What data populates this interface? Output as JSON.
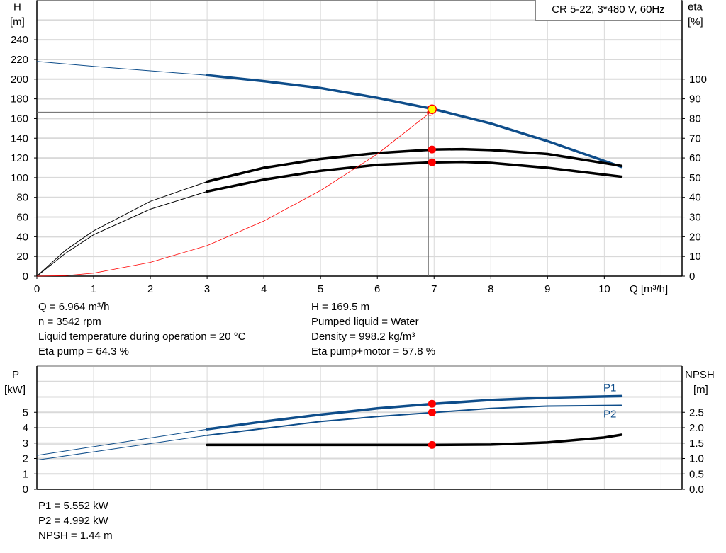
{
  "title": "CR 5-22, 3*480 V, 60Hz",
  "colors": {
    "blue": "#0e4d8a",
    "black": "#000000",
    "red": "#ff0000",
    "operating_point": "#ffff00",
    "grid": "#d9d9d9"
  },
  "info_top": {
    "left": [
      "Q = 6.964 m³/h",
      "n = 3542 rpm",
      "Liquid temperature during operation = 20 °C",
      "Eta pump = 64.3 %"
    ],
    "right": [
      "H = 169.5 m",
      "Pumped liquid = Water",
      "Density = 998.2 kg/m³",
      "Eta pump+motor = 57.8 %"
    ]
  },
  "info_bottom": [
    "P1 = 5.552 kW",
    "P2 = 4.992 kW",
    "NPSH = 1.44 m"
  ],
  "chart_data": [
    {
      "type": "line",
      "xlabel": "Q [m³/h]",
      "ylabel": [
        "H",
        "[m]"
      ],
      "y2label": [
        "eta",
        "[%]"
      ],
      "xlim": [
        0,
        11.37
      ],
      "ylim": [
        0,
        280
      ],
      "y2lim": [
        0,
        140
      ],
      "grid": true,
      "xticks": [
        "0",
        "1",
        "2",
        "3",
        "4",
        "5",
        "6",
        "7",
        "8",
        "9",
        "10"
      ],
      "yticks": [
        "0",
        "20",
        "40",
        "60",
        "80",
        "100",
        "120",
        "140",
        "160",
        "180",
        "200",
        "220",
        "240"
      ],
      "y2ticks": [
        "0",
        "10",
        "20",
        "30",
        "40",
        "50",
        "60",
        "70",
        "80",
        "90",
        "100"
      ],
      "series": [
        {
          "key": "H",
          "axis": "y",
          "color": "#0e4d8a",
          "thick_from": 3,
          "x": [
            0,
            1,
            2,
            3,
            4,
            5,
            6,
            7,
            8,
            9,
            10.3
          ],
          "y": [
            218,
            213,
            208.5,
            204,
            198,
            191,
            181,
            169.5,
            155,
            137,
            111
          ]
        },
        {
          "key": "eta_pump",
          "axis": "y2",
          "color": "#000000",
          "thick_from": 3,
          "x": [
            0,
            0.5,
            1,
            2,
            3,
            4,
            5,
            6,
            7,
            7.5,
            8,
            9,
            10.3
          ],
          "y": [
            0,
            13,
            23,
            38,
            48,
            55,
            59.5,
            62.5,
            64.3,
            64.5,
            64,
            62,
            56
          ]
        },
        {
          "key": "eta_pump_motor",
          "axis": "y2",
          "color": "#000000",
          "thick_from": 3,
          "x": [
            0,
            0.5,
            1,
            2,
            3,
            4,
            5,
            6,
            7,
            7.5,
            8,
            9,
            10.3
          ],
          "y": [
            0,
            11.5,
            21,
            34,
            43,
            49,
            53.5,
            56.5,
            57.8,
            58,
            57.5,
            55,
            50.5
          ]
        },
        {
          "key": "system_curve",
          "axis": "y",
          "color": "#ff0000",
          "thick_from": null,
          "x": [
            0,
            0.5,
            1,
            2,
            3,
            4,
            5,
            6,
            6.93
          ],
          "y": [
            0,
            0.5,
            3,
            14,
            31,
            56,
            87,
            124,
            166
          ]
        }
      ],
      "reference_lines": {
        "h_level": 166.5,
        "q_level": 6.9
      },
      "operating_point": {
        "q": 6.964,
        "h": 169.5,
        "eta_pump": 64.3,
        "eta_pump_motor": 57.8
      }
    },
    {
      "type": "line",
      "ylabel": [
        "P",
        "[kW]"
      ],
      "y2label": [
        "NPSH",
        "[m]"
      ],
      "xlim": [
        0,
        11.37
      ],
      "ylim": [
        0,
        8
      ],
      "y2lim": [
        0,
        4
      ],
      "grid": true,
      "yticks": [
        "0",
        "1",
        "2",
        "3",
        "4",
        "5"
      ],
      "y2ticks": [
        "0.0",
        "0.5",
        "1.0",
        "1.5",
        "2.0",
        "2.5"
      ],
      "series": [
        {
          "key": "P1",
          "name": "P1",
          "axis": "y",
          "color": "#0e4d8a",
          "thick_from": 3,
          "width": 3.5,
          "x": [
            0,
            3,
            4,
            5,
            6,
            7,
            8,
            9,
            10.3
          ],
          "y": [
            2.2,
            3.9,
            4.4,
            4.85,
            5.25,
            5.55,
            5.8,
            5.95,
            6.05
          ]
        },
        {
          "key": "P2",
          "name": "P2",
          "axis": "y",
          "color": "#0e4d8a",
          "thick_from": 3,
          "width": 2,
          "x": [
            0,
            3,
            4,
            5,
            6,
            7,
            8,
            9,
            10.3
          ],
          "y": [
            1.9,
            3.5,
            3.95,
            4.4,
            4.72,
            4.99,
            5.25,
            5.4,
            5.45
          ]
        },
        {
          "key": "NPSH",
          "axis": "y2",
          "color": "#000000",
          "thick_from": 3,
          "width": 3.5,
          "flat_before": true,
          "x": [
            3,
            4,
            5,
            6,
            7,
            8,
            9,
            10,
            10.3
          ],
          "y": [
            1.44,
            1.44,
            1.44,
            1.44,
            1.44,
            1.45,
            1.52,
            1.68,
            1.77
          ]
        }
      ],
      "operating_point": {
        "q": 6.964,
        "p1": 5.552,
        "p2": 4.992,
        "npsh": 1.44
      }
    }
  ]
}
